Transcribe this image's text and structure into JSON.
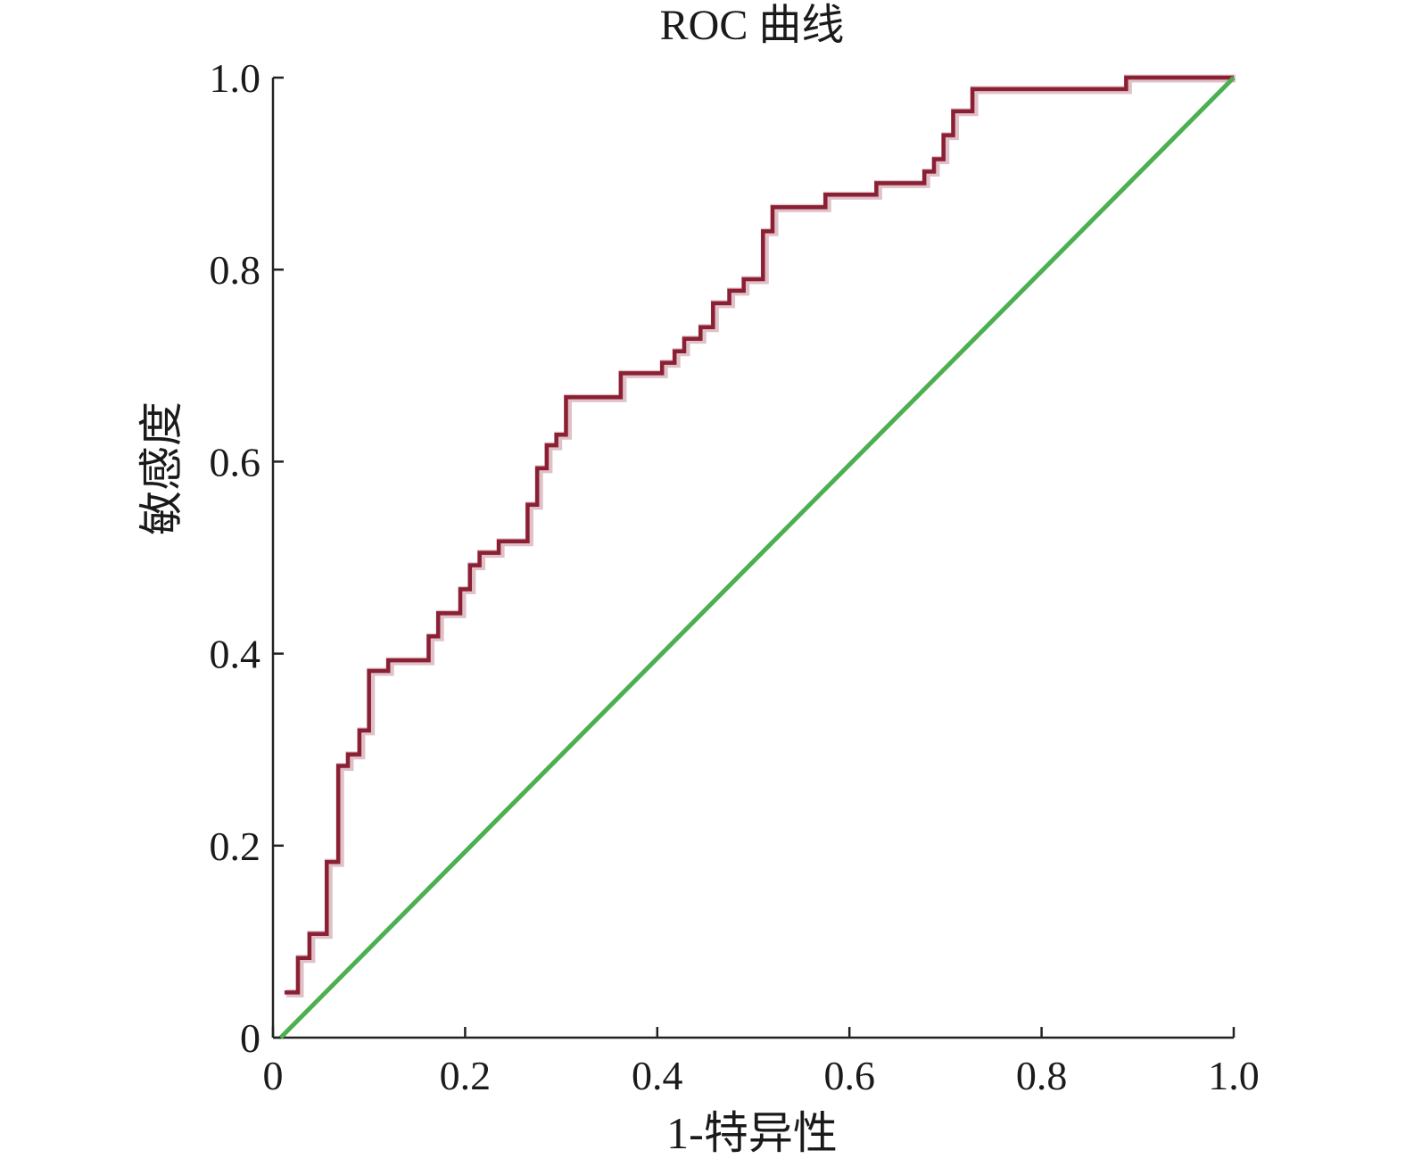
{
  "chart_data": {
    "type": "line",
    "title": "ROC 曲线",
    "xlabel": "1-特异性",
    "ylabel": "敏感度",
    "xlim": [
      0,
      1
    ],
    "ylim": [
      0,
      1
    ],
    "x_ticks": [
      0,
      0.2,
      0.4,
      0.6,
      0.8,
      1.0
    ],
    "x_tick_labels": [
      "0",
      "0.2",
      "0.4",
      "0.6",
      "0.8",
      "1.0"
    ],
    "y_ticks": [
      0,
      0.2,
      0.4,
      0.6,
      0.8,
      1.0
    ],
    "y_tick_labels": [
      "0",
      "0.2",
      "0.4",
      "0.6",
      "0.8",
      "1.0"
    ],
    "grid": false,
    "series": [
      {
        "color": "#8b2035",
        "step": true,
        "x": [
          0.012,
          0.026,
          0.038,
          0.056,
          0.068,
          0.078,
          0.09,
          0.1,
          0.12,
          0.162,
          0.172,
          0.195,
          0.205,
          0.215,
          0.235,
          0.265,
          0.275,
          0.285,
          0.295,
          0.305,
          0.362,
          0.405,
          0.418,
          0.428,
          0.445,
          0.458,
          0.475,
          0.49,
          0.51,
          0.52,
          0.575,
          0.628,
          0.678,
          0.688,
          0.698,
          0.708,
          0.728,
          0.888,
          1.0
        ],
        "y": [
          0.047,
          0.083,
          0.108,
          0.183,
          0.283,
          0.295,
          0.32,
          0.382,
          0.393,
          0.418,
          0.442,
          0.467,
          0.492,
          0.505,
          0.517,
          0.555,
          0.593,
          0.617,
          0.628,
          0.667,
          0.692,
          0.703,
          0.715,
          0.728,
          0.74,
          0.765,
          0.778,
          0.79,
          0.84,
          0.865,
          0.878,
          0.89,
          0.902,
          0.915,
          0.94,
          0.965,
          0.988,
          1.0,
          1.0
        ]
      },
      {
        "color": "#4caf50",
        "step": false,
        "x": [
          0.008,
          1.0
        ],
        "y": [
          0.0,
          1.0
        ]
      }
    ]
  }
}
